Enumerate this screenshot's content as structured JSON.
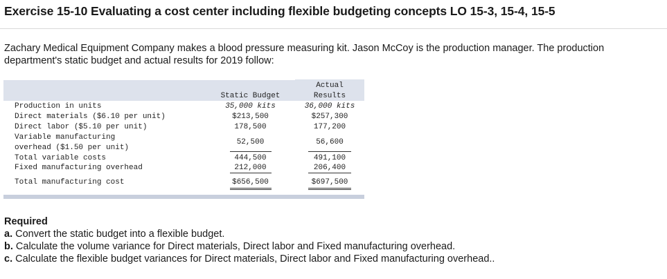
{
  "title": "Exercise 15-10 Evaluating a cost center including flexible budgeting concepts LO 15-3, 15-4, 15-5",
  "intro": "Zachary Medical Equipment Company makes a blood pressure measuring kit. Jason McCoy is the production manager. The production department's static budget and actual results for 2019 follow:",
  "table": {
    "headers": {
      "static_budget": "Static Budget",
      "actual_line1": "Actual",
      "actual_line2": "Results"
    },
    "rows": [
      {
        "label": "Production in units",
        "static": "35,000 kits",
        "actual": "36,000 kits"
      },
      {
        "label": "Direct materials ($6.10 per unit)",
        "static": "$213,500",
        "actual": "$257,300"
      },
      {
        "label": "Direct labor ($5.10 per unit)",
        "static": "178,500",
        "actual": "177,200"
      },
      {
        "label_line1": "Variable manufacturing",
        "label_line2": "overhead ($1.50 per unit)",
        "static": "52,500",
        "actual": "56,600"
      },
      {
        "label": "Total variable costs",
        "static": "444,500",
        "actual": "491,100"
      },
      {
        "label": "Fixed manufacturing overhead",
        "static": "212,000",
        "actual": "206,400"
      },
      {
        "label": "Total manufacturing cost",
        "static": "$656,500",
        "actual": "$697,500"
      }
    ]
  },
  "required": {
    "heading": "Required",
    "items": [
      {
        "letter": "a.",
        "text": " Convert the static budget into a flexible budget."
      },
      {
        "letter": "b.",
        "text": " Calculate the volume variance for Direct materials, Direct labor and Fixed manufacturing overhead."
      },
      {
        "letter": "c.",
        "text": " Calculate the flexible budget variances for Direct materials, Direct labor and Fixed manufacturing overhead.."
      }
    ]
  }
}
